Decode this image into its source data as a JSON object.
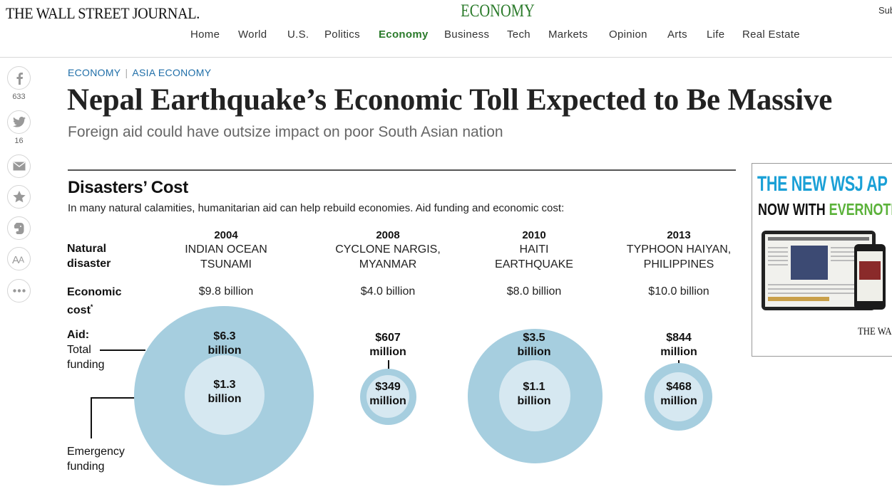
{
  "header": {
    "masthead": "THE WALL STREET JOURNAL.",
    "section_title": "ECONOMY",
    "subscribe": "Sub",
    "nav": [
      {
        "label": "Home",
        "active": false
      },
      {
        "label": "World",
        "active": false
      },
      {
        "label": "U.S.",
        "active": false
      },
      {
        "label": "Politics",
        "active": false
      },
      {
        "label": "Economy",
        "active": true
      },
      {
        "label": "Business",
        "active": false
      },
      {
        "label": "Tech",
        "active": false
      },
      {
        "label": "Markets",
        "active": false
      },
      {
        "label": "Opinion",
        "active": false
      },
      {
        "label": "Arts",
        "active": false
      },
      {
        "label": "Life",
        "active": false
      },
      {
        "label": "Real Estate",
        "active": false
      }
    ]
  },
  "share": {
    "facebook_count": "633",
    "twitter_count": "16",
    "icons": [
      "facebook-icon",
      "twitter-icon",
      "email-icon",
      "star-icon",
      "evernote-icon",
      "font-size-icon",
      "more-icon"
    ]
  },
  "article": {
    "breadcrumb": {
      "section": "ECONOMY",
      "subsection": "ASIA ECONOMY"
    },
    "headline": "Nepal Earthquake’s Economic Toll Expected to Be Massive",
    "dek": "Foreign aid could have outsize impact on poor South Asian nation"
  },
  "graphic": {
    "title": "Disasters’ Cost",
    "subtitle": "In many natural calamities, humanitarian aid can help rebuild economies. Aid funding and economic cost:",
    "labels": {
      "natural_1": "Natural",
      "natural_2": "disaster",
      "economic_1": "Economic",
      "economic_2": "cost",
      "economic_note": "*",
      "aid": "Aid:",
      "total_1": "Total",
      "total_2": "funding",
      "emergency_1": "Emergency",
      "emergency_2": "funding"
    },
    "disasters": [
      {
        "year": "2004",
        "name_1": "INDIAN OCEAN",
        "name_2": "TSUNAMI",
        "cost": "$9.8 billion",
        "total_1": "$6.3",
        "total_2": "billion",
        "emergency_1": "$1.3",
        "emergency_2": "billion",
        "total_funding_millions": 6300,
        "emergency_funding_millions": 1300
      },
      {
        "year": "2008",
        "name_1": "CYCLONE NARGIS,",
        "name_2": "MYANMAR",
        "cost": "$4.0 billion",
        "total_1": "$607",
        "total_2": "million",
        "emergency_1": "$349",
        "emergency_2": "million",
        "total_funding_millions": 607,
        "emergency_funding_millions": 349
      },
      {
        "year": "2010",
        "name_1": "HAITI",
        "name_2": "EARTHQUAKE",
        "cost": "$8.0 billion",
        "total_1": "$3.5",
        "total_2": "billion",
        "emergency_1": "$1.1",
        "emergency_2": "billion",
        "total_funding_millions": 3500,
        "emergency_funding_millions": 1100
      },
      {
        "year": "2013",
        "name_1": "TYPHOON HAIYAN,",
        "name_2": "PHILIPPINES",
        "cost": "$10.0 billion",
        "total_1": "$844",
        "total_2": "million",
        "emergency_1": "$468",
        "emergency_2": "million",
        "total_funding_millions": 844,
        "emergency_funding_millions": 468
      }
    ],
    "colors": {
      "total": "#a6cedf",
      "emergency": "#d6e8f1"
    }
  },
  "ad": {
    "headline": "THE NEW WSJ AP",
    "sub_prefix": "NOW WITH",
    "sub_brand": "EVERNOTE",
    "brand": "THE WAL",
    "colors": {
      "headline": "#1aa0d6",
      "brand_green": "#5bb23a"
    }
  }
}
